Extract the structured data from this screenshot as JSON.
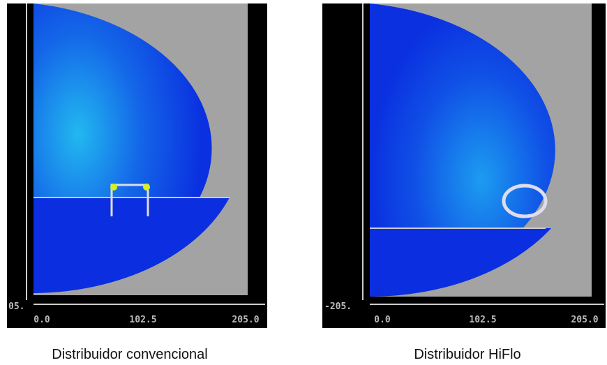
{
  "panels": [
    {
      "caption": "Distribuidor convencional",
      "y_label": "05.",
      "x_labels": [
        "0.0",
        "102.5",
        "205.0"
      ]
    },
    {
      "caption": "Distribuidor HiFlo",
      "y_label": "-205.",
      "x_labels": [
        "0.0",
        "102.5",
        "205.0"
      ]
    }
  ]
}
